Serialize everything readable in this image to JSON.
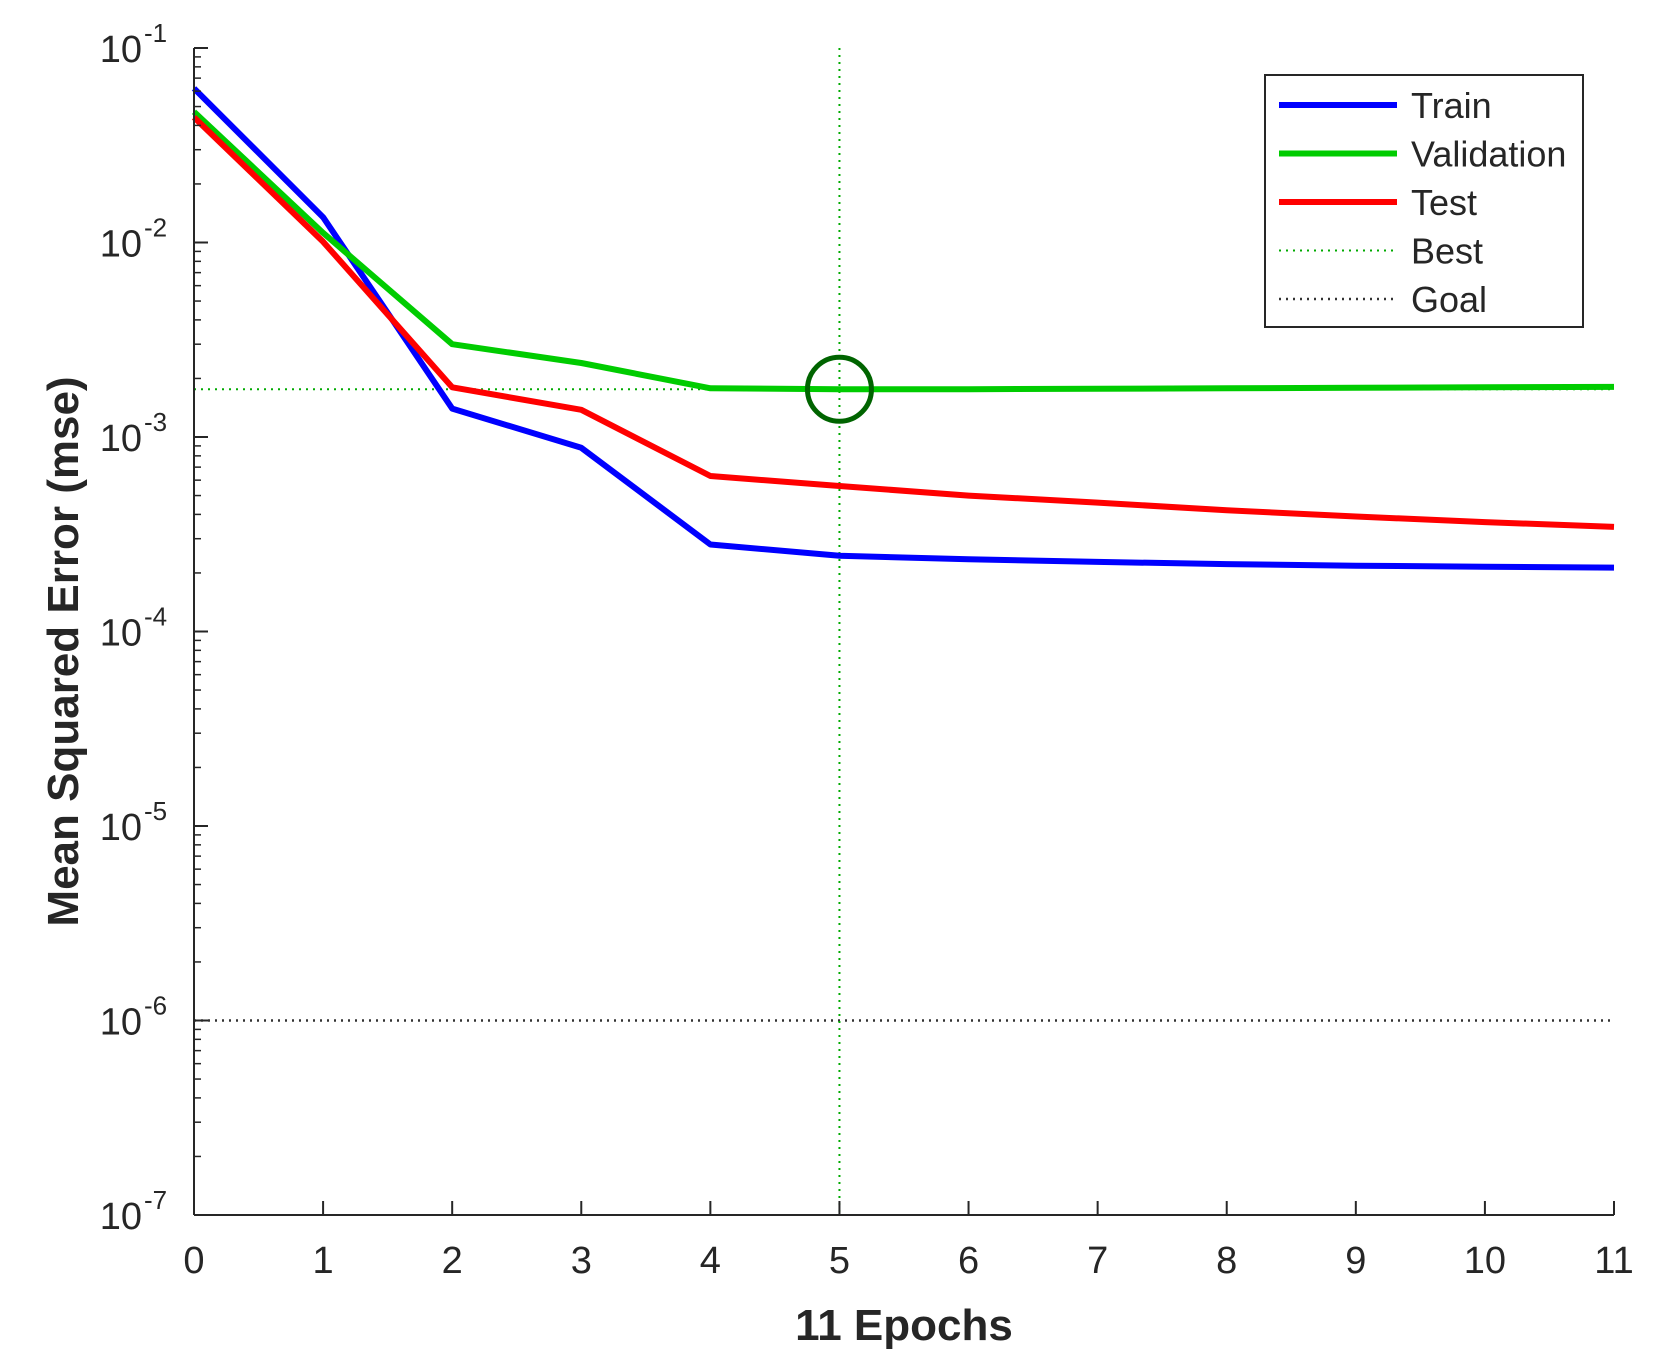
{
  "chart_data": {
    "type": "line",
    "title": "",
    "xlabel": "11 Epochs",
    "ylabel": "Mean Squared Error  (mse)",
    "x": [
      0,
      1,
      2,
      3,
      4,
      5,
      6,
      7,
      8,
      9,
      10,
      11
    ],
    "xlim": [
      0,
      11
    ],
    "ylim": [
      1e-07,
      0.1
    ],
    "yscale": "log",
    "xticks": [
      "0",
      "1",
      "2",
      "3",
      "4",
      "5",
      "6",
      "7",
      "8",
      "9",
      "10",
      "11"
    ],
    "yticks": [
      {
        "base": "10",
        "exp": "-1",
        "value": 0.1
      },
      {
        "base": "10",
        "exp": "-2",
        "value": 0.01
      },
      {
        "base": "10",
        "exp": "-3",
        "value": 0.001
      },
      {
        "base": "10",
        "exp": "-4",
        "value": 0.0001
      },
      {
        "base": "10",
        "exp": "-5",
        "value": 1e-05
      },
      {
        "base": "10",
        "exp": "-6",
        "value": 1e-06
      },
      {
        "base": "10",
        "exp": "-7",
        "value": 1e-07
      }
    ],
    "series": [
      {
        "name": "Train",
        "color": "#0000ff",
        "values": [
          0.062,
          0.0135,
          0.0014,
          0.00088,
          0.00028,
          0.000245,
          0.000235,
          0.000228,
          0.000222,
          0.000218,
          0.000215,
          0.000213
        ]
      },
      {
        "name": "Validation",
        "color": "#00cc00",
        "values": [
          0.047,
          0.0112,
          0.003,
          0.0024,
          0.00178,
          0.00176,
          0.00176,
          0.00177,
          0.00178,
          0.00179,
          0.0018,
          0.00181
        ]
      },
      {
        "name": "Test",
        "color": "#ff0000",
        "values": [
          0.044,
          0.0101,
          0.0018,
          0.00138,
          0.00063,
          0.00056,
          0.0005,
          0.00046,
          0.00042,
          0.00039,
          0.000365,
          0.000345
        ]
      }
    ],
    "best": {
      "label": "Best",
      "epoch": 5,
      "value": 0.00176,
      "color": "#00aa00",
      "marker_color": "#006400"
    },
    "goal": {
      "label": "Goal",
      "value": 1e-06,
      "color": "#333333"
    },
    "legend": {
      "position": "top-right",
      "entries": [
        "Train",
        "Validation",
        "Test",
        "Best",
        "Goal"
      ]
    }
  }
}
